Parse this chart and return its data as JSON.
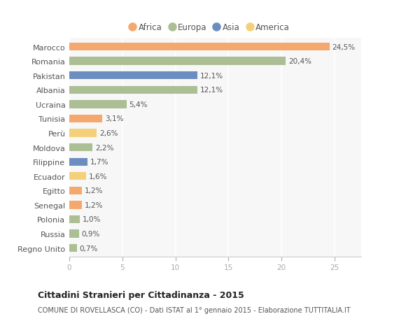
{
  "categories": [
    "Marocco",
    "Romania",
    "Pakistan",
    "Albania",
    "Ucraina",
    "Tunisia",
    "Perù",
    "Moldova",
    "Filippine",
    "Ecuador",
    "Egitto",
    "Senegal",
    "Polonia",
    "Russia",
    "Regno Unito"
  ],
  "values": [
    24.5,
    20.4,
    12.1,
    12.1,
    5.4,
    3.1,
    2.6,
    2.2,
    1.7,
    1.6,
    1.2,
    1.2,
    1.0,
    0.9,
    0.7
  ],
  "labels": [
    "24,5%",
    "20,4%",
    "12,1%",
    "12,1%",
    "5,4%",
    "3,1%",
    "2,6%",
    "2,2%",
    "1,7%",
    "1,6%",
    "1,2%",
    "1,2%",
    "1,0%",
    "0,9%",
    "0,7%"
  ],
  "continents": [
    "Africa",
    "Europa",
    "Asia",
    "Europa",
    "Europa",
    "Africa",
    "America",
    "Europa",
    "Asia",
    "America",
    "Africa",
    "Africa",
    "Europa",
    "Europa",
    "Europa"
  ],
  "colors": {
    "Africa": "#F5A86E",
    "Europa": "#ABBE94",
    "Asia": "#6B8DC0",
    "America": "#F5D07A"
  },
  "legend_order": [
    "Africa",
    "Europa",
    "Asia",
    "America"
  ],
  "legend_colors": [
    "#F5A86E",
    "#ABBE94",
    "#6B8DC0",
    "#F5D07A"
  ],
  "title": "Cittadini Stranieri per Cittadinanza - 2015",
  "subtitle": "COMUNE DI ROVELLASCA (CO) - Dati ISTAT al 1° gennaio 2015 - Elaborazione TUTTITALIA.IT",
  "xlim": [
    0,
    27.5
  ],
  "background_color": "#ffffff",
  "plot_bg_color": "#f7f7f7",
  "grid_color": "#ffffff",
  "label_color": "#555555",
  "tick_color": "#aaaaaa"
}
